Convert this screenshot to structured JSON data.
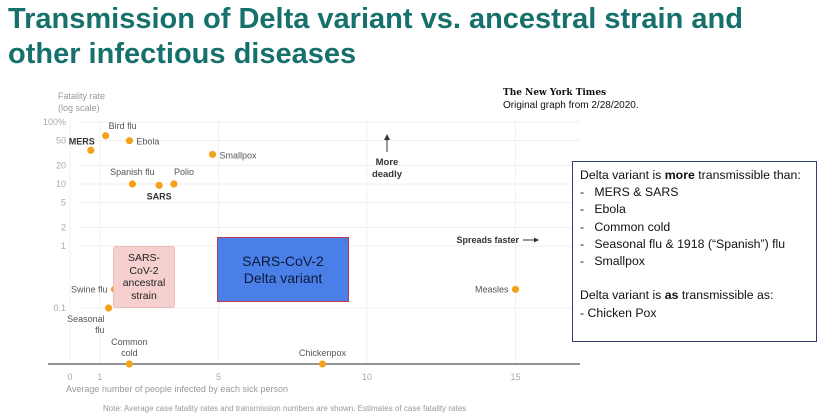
{
  "title": "Transmission of Delta variant vs. ancestral strain and other infectious diseases",
  "source": {
    "logo_text": "The New York Times",
    "caption": "Original graph from 2/28/2020."
  },
  "chart_data": {
    "type": "scatter",
    "ylabel_lines": [
      "Fatality rate",
      "(log scale)"
    ],
    "xlabel": "Average number of people infected by each sick person",
    "y_scale": "log",
    "x_ticks": [
      0,
      1,
      5,
      10,
      15
    ],
    "y_ticks": [
      {
        "v": 100,
        "label": "100%"
      },
      {
        "v": 50,
        "label": "50"
      },
      {
        "v": 20,
        "label": "20"
      },
      {
        "v": 10,
        "label": "10"
      },
      {
        "v": 5,
        "label": "5"
      },
      {
        "v": 2,
        "label": "2"
      },
      {
        "v": 1,
        "label": "1"
      },
      {
        "v": 0.1,
        "label": "0.1"
      }
    ],
    "xlim": [
      0,
      17
    ],
    "point_color": "#f5a21b",
    "points": [
      {
        "name": "MERS",
        "x": 0.7,
        "y": 35,
        "bold": true
      },
      {
        "name": "Bird flu",
        "x": 1.2,
        "y": 60
      },
      {
        "name": "Ebola",
        "x": 2.0,
        "y": 50
      },
      {
        "name": "Smallpox",
        "x": 4.8,
        "y": 30
      },
      {
        "name": "Spanish flu",
        "x": 2.1,
        "y": 10
      },
      {
        "name": "SARS",
        "x": 3.0,
        "y": 9.5,
        "bold": true
      },
      {
        "name": "Polio",
        "x": 3.5,
        "y": 10
      },
      {
        "name": "Swine flu",
        "x": 1.5,
        "y": 0.2
      },
      {
        "name": "Seasonal flu",
        "x": 1.3,
        "y": 0.1
      },
      {
        "name": "Common cold",
        "x": 2.0,
        "y": 0
      },
      {
        "name": "Chickenpox",
        "x": 8.5,
        "y": 0
      },
      {
        "name": "Measles",
        "x": 15,
        "y": 0.2
      }
    ],
    "annotations": {
      "more_deadly": [
        "More",
        "deadly"
      ],
      "spreads_faster": "Spreads faster"
    },
    "regions": {
      "ancestral": {
        "lines": [
          "SARS-",
          "CoV-2",
          "ancestral",
          "strain"
        ],
        "x": [
          1.5,
          3.5
        ],
        "y": [
          0.1,
          1
        ],
        "color": "#f6cfcf"
      },
      "delta": {
        "lines": [
          "SARS-CoV-2",
          "Delta variant"
        ],
        "color": "#4b7fe8"
      }
    },
    "grid": true
  },
  "info_box": {
    "line1_a": "Delta variant is ",
    "line1_b": "more",
    "line1_c": " transmissible than:",
    "items": [
      "MERS & SARS",
      "Ebola",
      "Common cold",
      "Seasonal flu & 1918 (“Spanish”) flu",
      "Smallpox"
    ],
    "line2_a": "Delta variant is ",
    "line2_b": "as",
    "line2_c": " transmissible as:",
    "line2_item": "- Chicken Pox"
  },
  "note": "Note: Average case fatality rates and transmission numbers are shown. Estimates of case fatality rates"
}
